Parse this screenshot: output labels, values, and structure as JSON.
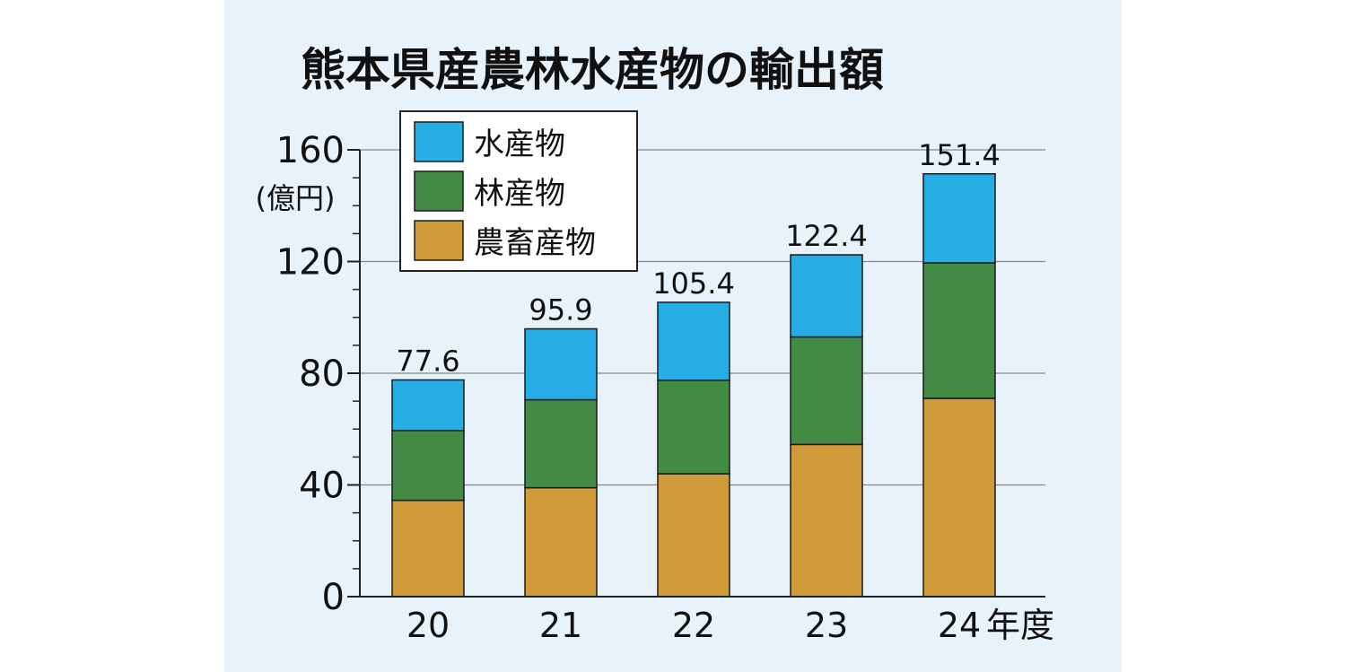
{
  "colors": {
    "background": "#e8f2fb",
    "water": "#27ade6",
    "forest": "#438a45",
    "agri": "#d09a3a",
    "grid": "#888888",
    "axis": "#222222"
  },
  "chart_data": {
    "type": "bar",
    "stacked": true,
    "title": "熊本県産農林水産物の輸出額",
    "ylabel": "(億円)",
    "xlabel": "年度",
    "ylim": [
      0,
      160
    ],
    "yticks": [
      "0",
      "40",
      "80",
      "120",
      "160"
    ],
    "categories": [
      "20",
      "21",
      "22",
      "23",
      "24"
    ],
    "totals": [
      "77.6",
      "95.9",
      "105.4",
      "122.4",
      "151.4"
    ],
    "series": [
      {
        "name": "農畜産物",
        "color_key": "agri",
        "values": [
          34.5,
          39,
          44,
          54.5,
          71
        ]
      },
      {
        "name": "林産物",
        "color_key": "forest",
        "values": [
          25,
          31.5,
          33.5,
          38.5,
          48.5
        ]
      },
      {
        "name": "水産物",
        "color_key": "water",
        "values": [
          18.1,
          25.4,
          27.9,
          29.4,
          31.9
        ]
      }
    ],
    "legend_order": [
      "水産物",
      "林産物",
      "農畜産物"
    ],
    "legend_position": "top-left",
    "grid": true
  }
}
